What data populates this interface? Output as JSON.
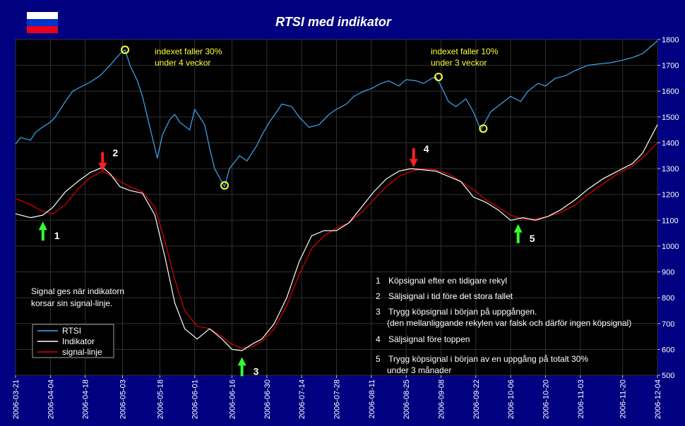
{
  "title": "RTSI med indikator",
  "flag_colors": [
    "#ffffff",
    "#0033cc",
    "#e8001c"
  ],
  "colors": {
    "background": "#000080",
    "plot_background": "#000000",
    "rtsi": "#3fa9f5",
    "indicator": "#ffffff",
    "signal": "#e00000",
    "annotation": "#ffff33",
    "buy_arrow": "#33ff33",
    "sell_arrow": "#ff2020"
  },
  "chart_data": {
    "type": "line",
    "title": "RTSI med indikator",
    "y_axis_position": "right",
    "ylim": [
      500,
      1800
    ],
    "yticks": [
      500,
      600,
      700,
      800,
      900,
      1000,
      1100,
      1200,
      1300,
      1400,
      1500,
      1600,
      1700,
      1800
    ],
    "xlim": [
      "2006-03-21",
      "2006-12-04"
    ],
    "xticks": [
      "2006-03-21",
      "2006-04-04",
      "2006-04-18",
      "2006-05-03",
      "2006-05-18",
      "2006-06-01",
      "2006-06-16",
      "2006-06-30",
      "2006-07-14",
      "2006-07-28",
      "2006-08-11",
      "2006-08-25",
      "2006-09-08",
      "2006-09-22",
      "2006-10-06",
      "2006-10-20",
      "2006-11-03",
      "2006-11-20",
      "2006-12-04"
    ],
    "grid": true,
    "legend_position": "bottom-left",
    "series": [
      {
        "name": "RTSI",
        "x": [
          "2006-03-21",
          "2006-03-23",
          "2006-03-27",
          "2006-03-29",
          "2006-03-31",
          "2006-04-04",
          "2006-04-06",
          "2006-04-10",
          "2006-04-13",
          "2006-04-17",
          "2006-04-20",
          "2006-04-24",
          "2006-04-26",
          "2006-04-28",
          "2006-05-02",
          "2006-05-04",
          "2006-05-06",
          "2006-05-09",
          "2006-05-11",
          "2006-05-13",
          "2006-05-15",
          "2006-05-17",
          "2006-05-19",
          "2006-05-22",
          "2006-05-24",
          "2006-05-26",
          "2006-05-30",
          "2006-06-01",
          "2006-06-05",
          "2006-06-07",
          "2006-06-09",
          "2006-06-13",
          "2006-06-15",
          "2006-06-19",
          "2006-06-22",
          "2006-06-26",
          "2006-06-28",
          "2006-07-01",
          "2006-07-04",
          "2006-07-06",
          "2006-07-10",
          "2006-07-13",
          "2006-07-17",
          "2006-07-21",
          "2006-07-25",
          "2006-07-28",
          "2006-08-01",
          "2006-08-04",
          "2006-08-08",
          "2006-08-11",
          "2006-08-15",
          "2006-08-18",
          "2006-08-22",
          "2006-08-25",
          "2006-08-29",
          "2006-09-01",
          "2006-09-04",
          "2006-09-06",
          "2006-09-08",
          "2006-09-11",
          "2006-09-14",
          "2006-09-18",
          "2006-09-21",
          "2006-09-24",
          "2006-09-28",
          "2006-10-02",
          "2006-10-06",
          "2006-10-10",
          "2006-10-13",
          "2006-10-17",
          "2006-10-20",
          "2006-10-24",
          "2006-10-28",
          "2006-11-01",
          "2006-11-06",
          "2006-11-10",
          "2006-11-15",
          "2006-11-20",
          "2006-11-24",
          "2006-11-28",
          "2006-12-01",
          "2006-12-04"
        ],
        "values": [
          1395,
          1420,
          1410,
          1440,
          1455,
          1480,
          1500,
          1560,
          1600,
          1620,
          1635,
          1660,
          1680,
          1700,
          1745,
          1760,
          1700,
          1640,
          1580,
          1500,
          1420,
          1340,
          1430,
          1490,
          1510,
          1480,
          1450,
          1530,
          1470,
          1380,
          1300,
          1230,
          1300,
          1350,
          1330,
          1390,
          1430,
          1480,
          1520,
          1550,
          1540,
          1500,
          1460,
          1470,
          1510,
          1530,
          1550,
          1580,
          1600,
          1610,
          1630,
          1640,
          1620,
          1645,
          1640,
          1630,
          1648,
          1655,
          1620,
          1560,
          1540,
          1570,
          1520,
          1450,
          1520,
          1550,
          1580,
          1560,
          1600,
          1630,
          1620,
          1650,
          1660,
          1680,
          1700,
          1705,
          1710,
          1720,
          1730,
          1745,
          1770,
          1795
        ]
      },
      {
        "name": "Indikator",
        "x": [
          "2006-03-21",
          "2006-03-27",
          "2006-04-01",
          "2006-04-05",
          "2006-04-10",
          "2006-04-15",
          "2006-04-20",
          "2006-04-25",
          "2006-04-28",
          "2006-05-02",
          "2006-05-06",
          "2006-05-11",
          "2006-05-16",
          "2006-05-20",
          "2006-05-24",
          "2006-05-28",
          "2006-06-02",
          "2006-06-07",
          "2006-06-12",
          "2006-06-16",
          "2006-06-20",
          "2006-06-24",
          "2006-06-28",
          "2006-07-03",
          "2006-07-08",
          "2006-07-13",
          "2006-07-18",
          "2006-07-23",
          "2006-07-28",
          "2006-08-02",
          "2006-08-07",
          "2006-08-12",
          "2006-08-17",
          "2006-08-22",
          "2006-08-27",
          "2006-09-01",
          "2006-09-06",
          "2006-09-11",
          "2006-09-16",
          "2006-09-21",
          "2006-09-26",
          "2006-10-01",
          "2006-10-06",
          "2006-10-11",
          "2006-10-16",
          "2006-10-21",
          "2006-10-26",
          "2006-11-01",
          "2006-11-06",
          "2006-11-12",
          "2006-11-18",
          "2006-11-24",
          "2006-11-28",
          "2006-12-04"
        ],
        "values": [
          1125,
          1110,
          1120,
          1150,
          1210,
          1250,
          1285,
          1305,
          1280,
          1230,
          1215,
          1205,
          1120,
          960,
          780,
          680,
          640,
          680,
          640,
          600,
          595,
          620,
          640,
          700,
          800,
          940,
          1040,
          1060,
          1060,
          1090,
          1150,
          1210,
          1260,
          1290,
          1300,
          1295,
          1290,
          1270,
          1250,
          1190,
          1170,
          1140,
          1100,
          1110,
          1100,
          1115,
          1140,
          1180,
          1220,
          1260,
          1290,
          1320,
          1360,
          1470
        ]
      },
      {
        "name": "signal-linje",
        "x": [
          "2006-03-21",
          "2006-03-27",
          "2006-04-01",
          "2006-04-05",
          "2006-04-10",
          "2006-04-15",
          "2006-04-20",
          "2006-04-25",
          "2006-04-28",
          "2006-05-02",
          "2006-05-06",
          "2006-05-11",
          "2006-05-16",
          "2006-05-20",
          "2006-05-24",
          "2006-05-28",
          "2006-06-02",
          "2006-06-07",
          "2006-06-12",
          "2006-06-16",
          "2006-06-20",
          "2006-06-24",
          "2006-06-28",
          "2006-07-03",
          "2006-07-08",
          "2006-07-13",
          "2006-07-18",
          "2006-07-23",
          "2006-07-28",
          "2006-08-02",
          "2006-08-07",
          "2006-08-12",
          "2006-08-17",
          "2006-08-22",
          "2006-08-27",
          "2006-09-01",
          "2006-09-06",
          "2006-09-11",
          "2006-09-16",
          "2006-09-21",
          "2006-09-26",
          "2006-10-01",
          "2006-10-06",
          "2006-10-11",
          "2006-10-16",
          "2006-10-21",
          "2006-10-26",
          "2006-11-01",
          "2006-11-06",
          "2006-11-12",
          "2006-11-18",
          "2006-11-24",
          "2006-11-28",
          "2006-12-04"
        ],
        "values": [
          1185,
          1160,
          1135,
          1125,
          1160,
          1220,
          1265,
          1290,
          1275,
          1250,
          1230,
          1210,
          1150,
          1020,
          870,
          750,
          690,
          680,
          650,
          620,
          605,
          610,
          630,
          680,
          770,
          890,
          990,
          1040,
          1070,
          1090,
          1130,
          1180,
          1230,
          1270,
          1290,
          1300,
          1295,
          1280,
          1250,
          1220,
          1180,
          1150,
          1120,
          1105,
          1105,
          1115,
          1130,
          1160,
          1200,
          1240,
          1280,
          1310,
          1340,
          1400
        ]
      }
    ],
    "highlight_points": [
      {
        "x": "2006-05-04",
        "y": 1760
      },
      {
        "x": "2006-06-13",
        "y": 1235
      },
      {
        "x": "2006-09-07",
        "y": 1655
      },
      {
        "x": "2006-09-25",
        "y": 1455
      }
    ],
    "signal_arrows": [
      {
        "label": "1",
        "kind": "buy",
        "x": "2006-04-01",
        "tip_y": 1095
      },
      {
        "label": "2",
        "kind": "sell",
        "x": "2006-04-25",
        "tip_y": 1290
      },
      {
        "label": "3",
        "kind": "buy",
        "x": "2006-06-20",
        "tip_y": 570
      },
      {
        "label": "4",
        "kind": "sell",
        "x": "2006-08-28",
        "tip_y": 1305
      },
      {
        "label": "5",
        "kind": "buy",
        "x": "2006-10-09",
        "tip_y": 1085
      }
    ],
    "annotations": {
      "drop30": [
        "indexet faller 30%",
        "under 4 veckor"
      ],
      "drop10": [
        "indexet faller 10%",
        "under 3 veckor"
      ],
      "note": [
        "Signal ges när indikatorn",
        "korsar sin signal-linje."
      ]
    },
    "numbered_notes": [
      {
        "num": "1",
        "lines": [
          "Köpsignal efter en tidigare rekyl"
        ]
      },
      {
        "num": "2",
        "lines": [
          "Säljsignal i tid före det stora fallet"
        ]
      },
      {
        "num": "3",
        "lines": [
          "Trygg köpsignal i början på uppgången.",
          "(den mellanliggande rekylen var falsk och därför ingen köpsignal)"
        ]
      },
      {
        "num": "4",
        "lines": [
          "Säljsignal före toppen"
        ]
      },
      {
        "num": "5",
        "lines": [
          "Trygg köpsignal i början av en uppgång på totalt 30%",
          "under 3 månader"
        ]
      }
    ],
    "legend": [
      "RTSI",
      "Indikator",
      "signal-linje"
    ]
  }
}
